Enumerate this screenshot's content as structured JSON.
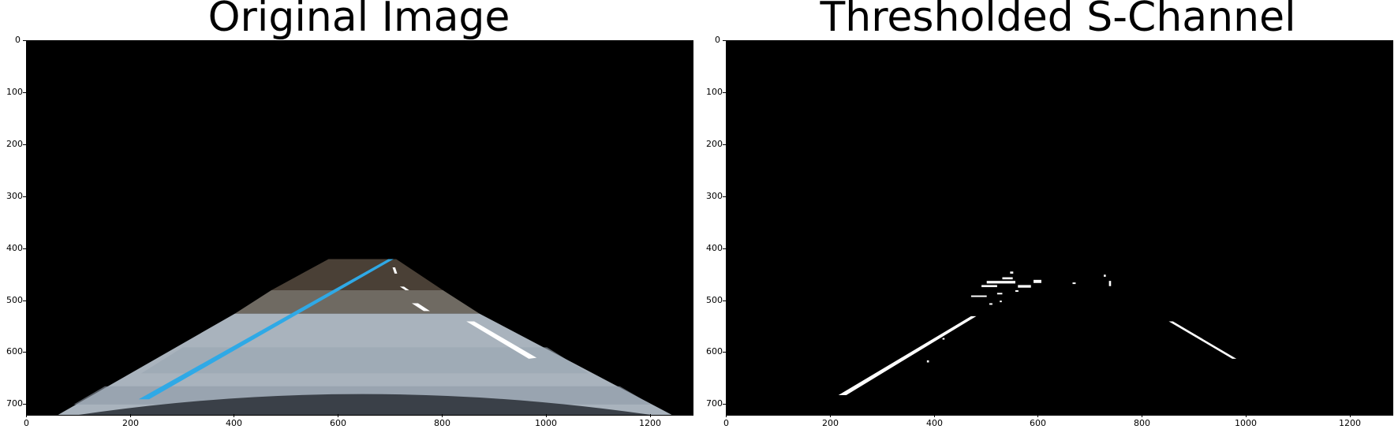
{
  "panels": [
    {
      "title": "Original Image",
      "xticks": [
        "0",
        "200",
        "400",
        "600",
        "800",
        "1000",
        "1200"
      ],
      "yticks": [
        "0",
        "100",
        "200",
        "300",
        "400",
        "500",
        "600",
        "700"
      ]
    },
    {
      "title": "Thresholded S-Channel",
      "xticks": [
        "0",
        "200",
        "400",
        "600",
        "800",
        "1000",
        "1200"
      ],
      "yticks": [
        "0",
        "100",
        "200",
        "300",
        "400",
        "500",
        "600",
        "700"
      ]
    }
  ],
  "image_size": {
    "width": 1280,
    "height": 720
  },
  "colors": {
    "background": "#000000",
    "road": "#a9b3bd",
    "lane_line_left": "#2fa9e6",
    "lane_line_right": "#ffffff",
    "threshold_pixels": "#ffffff"
  }
}
